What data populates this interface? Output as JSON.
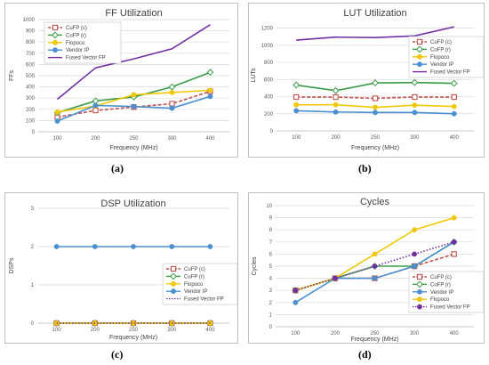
{
  "captions": [
    "(a)",
    "(b)",
    "(c)",
    "(d)"
  ],
  "chart_data": [
    {
      "type": "line",
      "title": "FF Utilization",
      "xlabel": "Frequency (MHz)",
      "ylabel": "FFs",
      "categories": [
        "100",
        "200",
        "250",
        "300",
        "400"
      ],
      "ylim": [
        0,
        1000
      ],
      "yticks": [
        0,
        100,
        200,
        300,
        400,
        500,
        600,
        700,
        800,
        900,
        1000
      ],
      "grid": true,
      "legend": "top-left",
      "series": [
        {
          "name": "CuFP (c)",
          "color": "#c0504d",
          "dash": true,
          "marker": "square-open",
          "values": [
            130,
            190,
            220,
            250,
            360
          ]
        },
        {
          "name": "CuFP (r)",
          "color": "#3a9a4a",
          "marker": "diamond-open",
          "values": [
            170,
            275,
            310,
            400,
            530
          ]
        },
        {
          "name": "Flopoco",
          "color": "#f0c808",
          "marker": "circle",
          "values": [
            175,
            230,
            330,
            350,
            370
          ]
        },
        {
          "name": "Vendor IP",
          "color": "#4a90d0",
          "marker": "circle",
          "values": [
            95,
            235,
            225,
            210,
            315
          ]
        },
        {
          "name": "Fused Vector FP",
          "color": "#7030a0",
          "marker": "none",
          "values": [
            290,
            570,
            650,
            740,
            955
          ]
        }
      ]
    },
    {
      "type": "line",
      "title": "LUT Utilization",
      "xlabel": "Frequency (MHz)",
      "ylabel": "LUTs",
      "categories": [
        "100",
        "200",
        "250",
        "300",
        "400"
      ],
      "ylim": [
        0,
        1300
      ],
      "yticks": [
        0,
        200,
        400,
        600,
        800,
        1000,
        1200
      ],
      "grid": true,
      "legend": "top-right",
      "series": [
        {
          "name": "CuFP (c)",
          "color": "#c0504d",
          "dash": true,
          "marker": "square-open",
          "values": [
            395,
            395,
            380,
            395,
            395
          ]
        },
        {
          "name": "CuFP (r)",
          "color": "#3a9a4a",
          "marker": "diamond-open",
          "values": [
            535,
            470,
            560,
            565,
            555
          ]
        },
        {
          "name": "Flopoco",
          "color": "#f0c808",
          "marker": "circle",
          "values": [
            305,
            305,
            275,
            300,
            285
          ]
        },
        {
          "name": "Vendor IP",
          "color": "#4a90d0",
          "marker": "circle",
          "values": [
            235,
            220,
            215,
            215,
            200
          ]
        },
        {
          "name": "Fused Vector FP",
          "color": "#7030a0",
          "marker": "none",
          "values": [
            1060,
            1095,
            1090,
            1110,
            1215
          ]
        }
      ]
    },
    {
      "type": "line",
      "title": "DSP Utilization",
      "xlabel": "Frequency (MHz)",
      "ylabel": "DSPs",
      "categories": [
        "100",
        "200",
        "250",
        "300",
        "400"
      ],
      "ylim": [
        0,
        3
      ],
      "yticks": [
        0,
        1,
        2,
        3
      ],
      "grid": true,
      "legend": "bottom-right",
      "series": [
        {
          "name": "CuFP (c)",
          "color": "#c0504d",
          "dash": true,
          "marker": "square-open",
          "values": [
            0,
            0,
            0,
            0,
            0
          ]
        },
        {
          "name": "CuFP (r)",
          "color": "#3a9a4a",
          "marker": "diamond-open",
          "values": [
            0,
            0,
            0,
            0,
            0
          ]
        },
        {
          "name": "Flopoco",
          "color": "#f0c808",
          "marker": "circle",
          "values": [
            0,
            0,
            0,
            0,
            0
          ]
        },
        {
          "name": "Vendor IP",
          "color": "#4a90d0",
          "marker": "circle",
          "values": [
            2,
            2,
            2,
            2,
            2
          ]
        },
        {
          "name": "Fused Vector FP",
          "color": "#7030a0",
          "dotted": true,
          "marker": "none",
          "values": [
            0,
            0,
            0,
            0,
            0
          ]
        }
      ]
    },
    {
      "type": "line",
      "title": "Cycles",
      "xlabel": "Frequency (MHz)",
      "ylabel": "Cycles",
      "categories": [
        "100",
        "200",
        "250",
        "300",
        "400"
      ],
      "ylim": [
        0,
        10
      ],
      "yticks": [
        0,
        1,
        2,
        3,
        4,
        5,
        6,
        7,
        8,
        9,
        10
      ],
      "grid": true,
      "legend": "bottom-right",
      "series": [
        {
          "name": "CuFP (c)",
          "color": "#c0504d",
          "dash": true,
          "marker": "square-open",
          "values": [
            3,
            4,
            4,
            5,
            6
          ]
        },
        {
          "name": "CuFP (r)",
          "color": "#3a9a4a",
          "marker": "diamond-open",
          "values": [
            3,
            4,
            5,
            5,
            7
          ]
        },
        {
          "name": "Vendor IP",
          "color": "#4a90d0",
          "marker": "circle",
          "values": [
            2,
            4,
            4,
            5,
            7
          ]
        },
        {
          "name": "Flopoco",
          "color": "#f0c808",
          "marker": "circle",
          "values": [
            3,
            4,
            6,
            8,
            9
          ]
        },
        {
          "name": "Fused Vector FP",
          "color": "#7030a0",
          "dotted": true,
          "marker": "circle",
          "values": [
            3,
            4,
            5,
            6,
            7
          ]
        }
      ]
    }
  ]
}
